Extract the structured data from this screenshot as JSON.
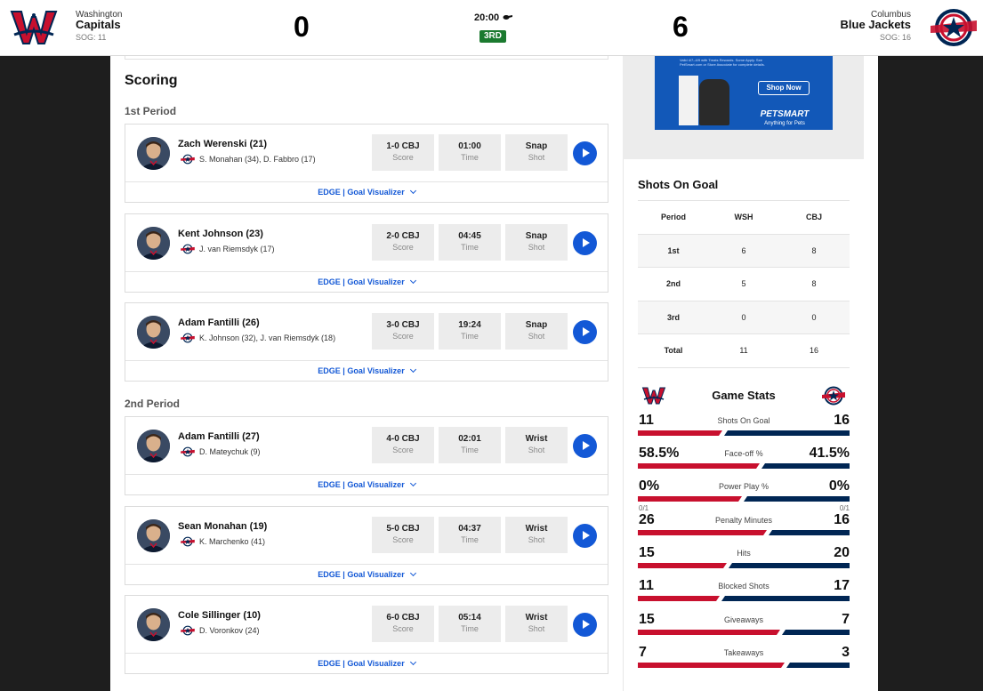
{
  "game": {
    "away": {
      "city": "Washington",
      "name": "Capitals",
      "sog": "SOG: 11",
      "score": "0"
    },
    "home": {
      "city": "Columbus",
      "name": "Blue Jackets",
      "sog": "SOG: 16",
      "score": "6"
    },
    "clock": "20:00",
    "period": "3RD"
  },
  "colors": {
    "caps_red": "#c8102e",
    "cbj_navy": "#002654",
    "link_blue": "#1358d6",
    "period_green": "#1b7a2f"
  },
  "scoring": {
    "title": "Scoring",
    "periods": [
      "1st Period",
      "2nd Period"
    ],
    "edge_prefix": "EDGE",
    "edge_label": "Goal Visualizer",
    "score_label": "Score",
    "time_label": "Time",
    "shot_label": "Shot",
    "goals": [
      {
        "scorer": "Zach Werenski (21)",
        "assists": "S. Monahan (34), D. Fabbro (17)",
        "score": "1-0 CBJ",
        "time": "01:00",
        "shot": "Snap"
      },
      {
        "scorer": "Kent Johnson (23)",
        "assists": "J. van Riemsdyk (17)",
        "score": "2-0 CBJ",
        "time": "04:45",
        "shot": "Snap"
      },
      {
        "scorer": "Adam Fantilli (26)",
        "assists": "K. Johnson (32), J. van Riemsdyk (18)",
        "score": "3-0 CBJ",
        "time": "19:24",
        "shot": "Snap"
      },
      {
        "scorer": "Adam Fantilli (27)",
        "assists": "D. Mateychuk (9)",
        "score": "4-0 CBJ",
        "time": "02:01",
        "shot": "Wrist"
      },
      {
        "scorer": "Sean Monahan (19)",
        "assists": "K. Marchenko (41)",
        "score": "5-0 CBJ",
        "time": "04:37",
        "shot": "Wrist"
      },
      {
        "scorer": "Cole Sillinger (10)",
        "assists": "D. Voronkov (24)",
        "score": "6-0 CBJ",
        "time": "05:14",
        "shot": "Wrist"
      }
    ]
  },
  "ad": {
    "fineprint": "Valid 4/7–4/9 with Treats Rewards. Some Apply. See PetSmart.com or Store Associate for complete details.",
    "button": "Shop Now",
    "brand": "PETSMART",
    "tagline": "Anything for Pets"
  },
  "shots_on_goal": {
    "title": "Shots On Goal",
    "headers": [
      "Period",
      "WSH",
      "CBJ"
    ],
    "rows": [
      [
        "1st",
        "6",
        "8"
      ],
      [
        "2nd",
        "5",
        "8"
      ],
      [
        "3rd",
        "0",
        "0"
      ],
      [
        "Total",
        "11",
        "16"
      ]
    ]
  },
  "game_stats": {
    "title": "Game Stats",
    "rows": [
      {
        "label": "Shots On Goal",
        "away": "11",
        "home": "16",
        "away_share": 0.407
      },
      {
        "label": "Face-off %",
        "away": "58.5%",
        "home": "41.5%",
        "away_share": 0.585
      },
      {
        "label": "Power Play %",
        "away": "0%",
        "home": "0%",
        "away_share": 0.5,
        "away_sub": "0/1",
        "home_sub": "0/1"
      },
      {
        "label": "Penalty Minutes",
        "away": "26",
        "home": "16",
        "away_share": 0.619
      },
      {
        "label": "Hits",
        "away": "15",
        "home": "20",
        "away_share": 0.429
      },
      {
        "label": "Blocked Shots",
        "away": "11",
        "home": "17",
        "away_share": 0.393
      },
      {
        "label": "Giveaways",
        "away": "15",
        "home": "7",
        "away_share": 0.682
      },
      {
        "label": "Takeaways",
        "away": "7",
        "home": "3",
        "away_share": 0.7
      }
    ]
  }
}
